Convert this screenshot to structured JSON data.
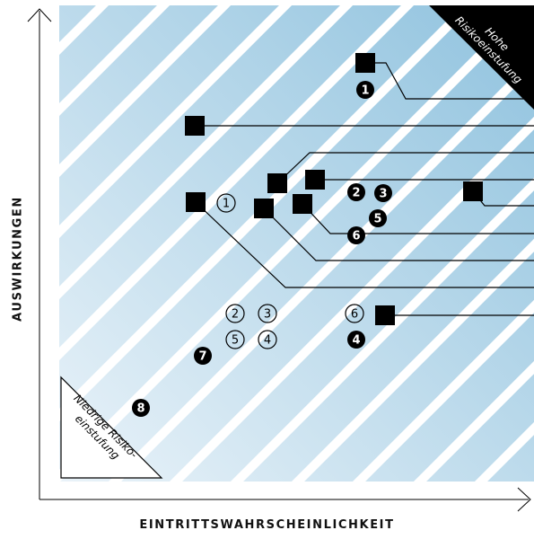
{
  "axes": {
    "x_label": "EINTRITTSWAHRSCHEINLICHKEIT",
    "y_label": "AUSWIRKUNGEN"
  },
  "corners": {
    "high": [
      "Hohe",
      "Risikoeinstufung"
    ],
    "low": [
      "Niedrige Risiko-",
      "einstufung"
    ]
  },
  "colors": {
    "band_light": "#eaf3f9",
    "band_dark": "#8fc2de",
    "stripe": "#ffffff",
    "marker": "#000000",
    "line": "#000000"
  },
  "filled_markers": [
    {
      "label": "1"
    },
    {
      "label": "2"
    },
    {
      "label": "3"
    },
    {
      "label": "5"
    },
    {
      "label": "6"
    },
    {
      "label": "4"
    },
    {
      "label": "7"
    },
    {
      "label": "8"
    }
  ],
  "outlined_markers": [
    {
      "label": "1"
    },
    {
      "label": "2"
    },
    {
      "label": "3"
    },
    {
      "label": "5"
    },
    {
      "label": "4"
    },
    {
      "label": "6"
    }
  ]
}
